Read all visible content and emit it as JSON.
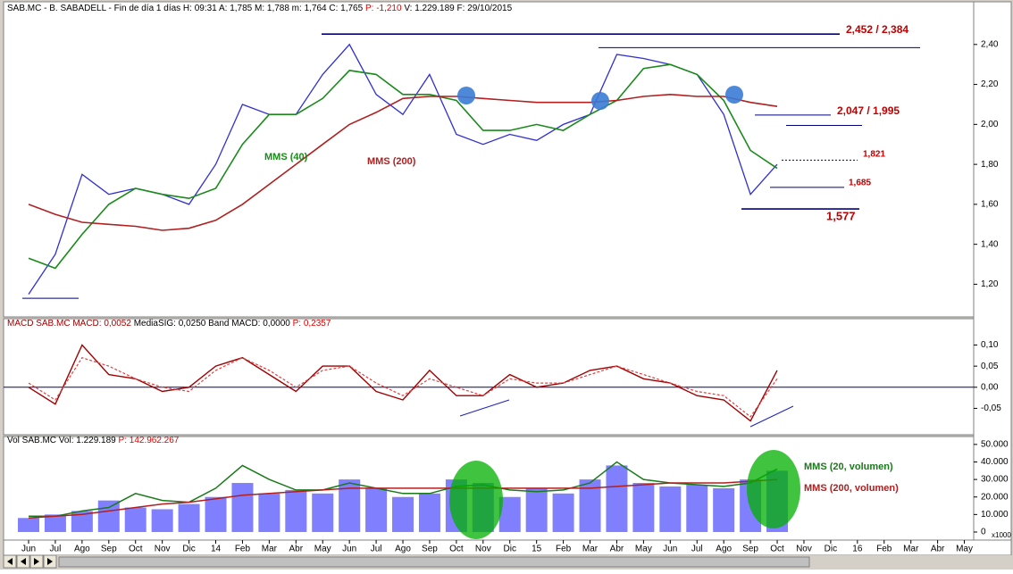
{
  "chart_data": [
    {
      "type": "line",
      "title": "SAB.MC - B. SABADELL - Fin de día 1 días H: 09:31 A: 1,785 M: 1,788 m: 1,764 C: 1,765",
      "title_change": "P: -1,210",
      "title_tail": "V: 1.229.189 F: 29/10/2015",
      "ylim": [
        1.05,
        2.56
      ],
      "yticks": [
        {
          "value": 1.2,
          "label": "1,20"
        },
        {
          "value": 1.4,
          "label": "1,40"
        },
        {
          "value": 1.6,
          "label": "1,60"
        },
        {
          "value": 1.8,
          "label": "1,80"
        },
        {
          "value": 2.0,
          "label": "2,00"
        },
        {
          "value": 2.2,
          "label": "2,20"
        },
        {
          "value": 2.4,
          "label": "2,40"
        }
      ],
      "series": [
        {
          "color": "#3030d0",
          "values": [
            1.15,
            1.35,
            1.75,
            1.65,
            1.68,
            1.65,
            1.6,
            1.8,
            2.1,
            2.05,
            2.05,
            2.25,
            2.4,
            2.15,
            2.05,
            2.25,
            1.95,
            1.9,
            1.95,
            1.92,
            2.0,
            2.05,
            2.35,
            2.33,
            2.3,
            2.25,
            2.05,
            1.65,
            1.8,
            null,
            null,
            null,
            null,
            null,
            null,
            null
          ]
        },
        {
          "name": "MMS (40)",
          "color": "#1a8a1a",
          "values": [
            1.33,
            1.28,
            1.45,
            1.6,
            1.68,
            1.65,
            1.63,
            1.68,
            1.9,
            2.05,
            2.05,
            2.13,
            2.27,
            2.25,
            2.15,
            2.15,
            2.12,
            1.97,
            1.97,
            2.0,
            1.97,
            2.05,
            2.12,
            2.28,
            2.3,
            2.25,
            2.12,
            1.87,
            1.78,
            null,
            null,
            null,
            null,
            null,
            null,
            null
          ]
        },
        {
          "name": "MMS (200)",
          "color": "#b02020",
          "values": [
            1.6,
            1.55,
            1.51,
            1.5,
            1.49,
            1.47,
            1.48,
            1.52,
            1.6,
            1.7,
            1.8,
            1.9,
            2.0,
            2.06,
            2.13,
            2.14,
            2.14,
            2.13,
            2.12,
            2.11,
            2.11,
            2.11,
            2.12,
            2.14,
            2.15,
            2.14,
            2.14,
            2.11,
            2.09,
            null,
            null,
            null,
            null,
            null,
            null,
            null
          ]
        }
      ],
      "levels": [
        2.452,
        2.384,
        2.047,
        1.995,
        1.821,
        1.685,
        1.577,
        1.13
      ],
      "annotations": [
        "2,452 / 2,384",
        "2,047 / 1,995",
        "1,821",
        "1,685",
        "1,577"
      ]
    },
    {
      "type": "line",
      "title": "MACD  SAB.MC MACD: 0,0052",
      "title_mid": "MediaSIG: 0,0250  Band  MACD: 0,0000",
      "title_change": "P: 0,2357",
      "ylim": [
        -0.1125,
        0.156
      ],
      "yticks": [
        {
          "value": -0.05,
          "label": "-0,05"
        },
        {
          "value": 0,
          "label": "0,00"
        },
        {
          "value": 0.05,
          "label": "0,05"
        },
        {
          "value": 0.1,
          "label": "0,10"
        }
      ],
      "series": [
        {
          "color": "#a00000",
          "values": [
            0.0,
            -0.04,
            0.1,
            0.03,
            0.02,
            -0.01,
            0.0,
            0.05,
            0.07,
            0.03,
            -0.01,
            0.05,
            0.05,
            -0.01,
            -0.03,
            0.04,
            -0.02,
            -0.02,
            0.03,
            0.0,
            0.01,
            0.04,
            0.05,
            0.02,
            0.01,
            -0.02,
            -0.03,
            -0.08,
            0.04,
            null,
            null,
            null,
            null,
            null,
            null,
            null
          ]
        },
        {
          "color": "#e04040",
          "values": [
            0.01,
            -0.03,
            0.07,
            0.05,
            0.02,
            0.0,
            -0.01,
            0.04,
            0.07,
            0.04,
            0.0,
            0.04,
            0.05,
            0.01,
            -0.02,
            0.02,
            0.0,
            -0.02,
            0.02,
            0.01,
            0.01,
            0.03,
            0.05,
            0.03,
            0.01,
            -0.01,
            -0.02,
            -0.07,
            0.02,
            null,
            null,
            null,
            null,
            null,
            null,
            null
          ]
        }
      ]
    },
    {
      "type": "bar",
      "title": "Vol  SAB.MC Vol: 1.229.189",
      "title_change": "P: 142.962.267",
      "unit": "x1000",
      "ylim": [
        -4600,
        54000
      ],
      "yticks": [
        0,
        {
          "value": 10000,
          "label": "10.000"
        },
        {
          "value": 20000,
          "label": "20.000"
        },
        {
          "value": 30000,
          "label": "30.000"
        },
        {
          "value": 40000,
          "label": "40.000"
        },
        {
          "value": 50000,
          "label": "50.000"
        }
      ],
      "categories": [
        "Jun",
        "Jul",
        "Ago",
        "Sep",
        "Oct",
        "Nov",
        "Dic",
        "14",
        "Feb",
        "Mar",
        "Abr",
        "May",
        "Jun",
        "Jul",
        "Ago",
        "Sep",
        "Oct",
        "Nov",
        "Dic",
        "15",
        "Feb",
        "Mar",
        "Abr",
        "May",
        "Jun",
        "Jul",
        "Ago",
        "Sep",
        "Oct",
        "Nov",
        "Dic",
        "16",
        "Feb",
        "Mar",
        "Abr",
        "May"
      ],
      "values": [
        8000,
        10000,
        12000,
        18000,
        14000,
        13000,
        16000,
        20000,
        28000,
        22000,
        24000,
        22000,
        30000,
        25000,
        20000,
        22000,
        30000,
        28000,
        20000,
        25000,
        22000,
        30000,
        38000,
        28000,
        26000,
        27000,
        25000,
        30000,
        35000,
        null,
        null,
        null,
        null,
        null,
        null,
        null
      ],
      "color": "#8080ff",
      "series": [
        {
          "name": "MMS (20, volumen)",
          "color": "#1a7a1a",
          "values": [
            9000,
            9000,
            12000,
            14000,
            22000,
            18000,
            17000,
            25000,
            38000,
            30000,
            24000,
            24000,
            28000,
            25000,
            22000,
            22000,
            26000,
            27000,
            24000,
            23000,
            24000,
            28000,
            40000,
            30000,
            28000,
            27000,
            26000,
            28000,
            36000,
            null,
            null,
            null,
            null,
            null,
            null,
            null
          ]
        },
        {
          "name": "MMS (200, volumen)",
          "color": "#b02020",
          "values": [
            8000,
            9000,
            10000,
            12000,
            14000,
            16000,
            17000,
            19000,
            21000,
            22000,
            23000,
            24000,
            25000,
            25000,
            25000,
            25000,
            25000,
            25000,
            25000,
            25000,
            25000,
            25000,
            26000,
            27000,
            28000,
            28000,
            28000,
            29000,
            30000,
            null,
            null,
            null,
            null,
            null,
            null,
            null
          ]
        }
      ]
    }
  ]
}
